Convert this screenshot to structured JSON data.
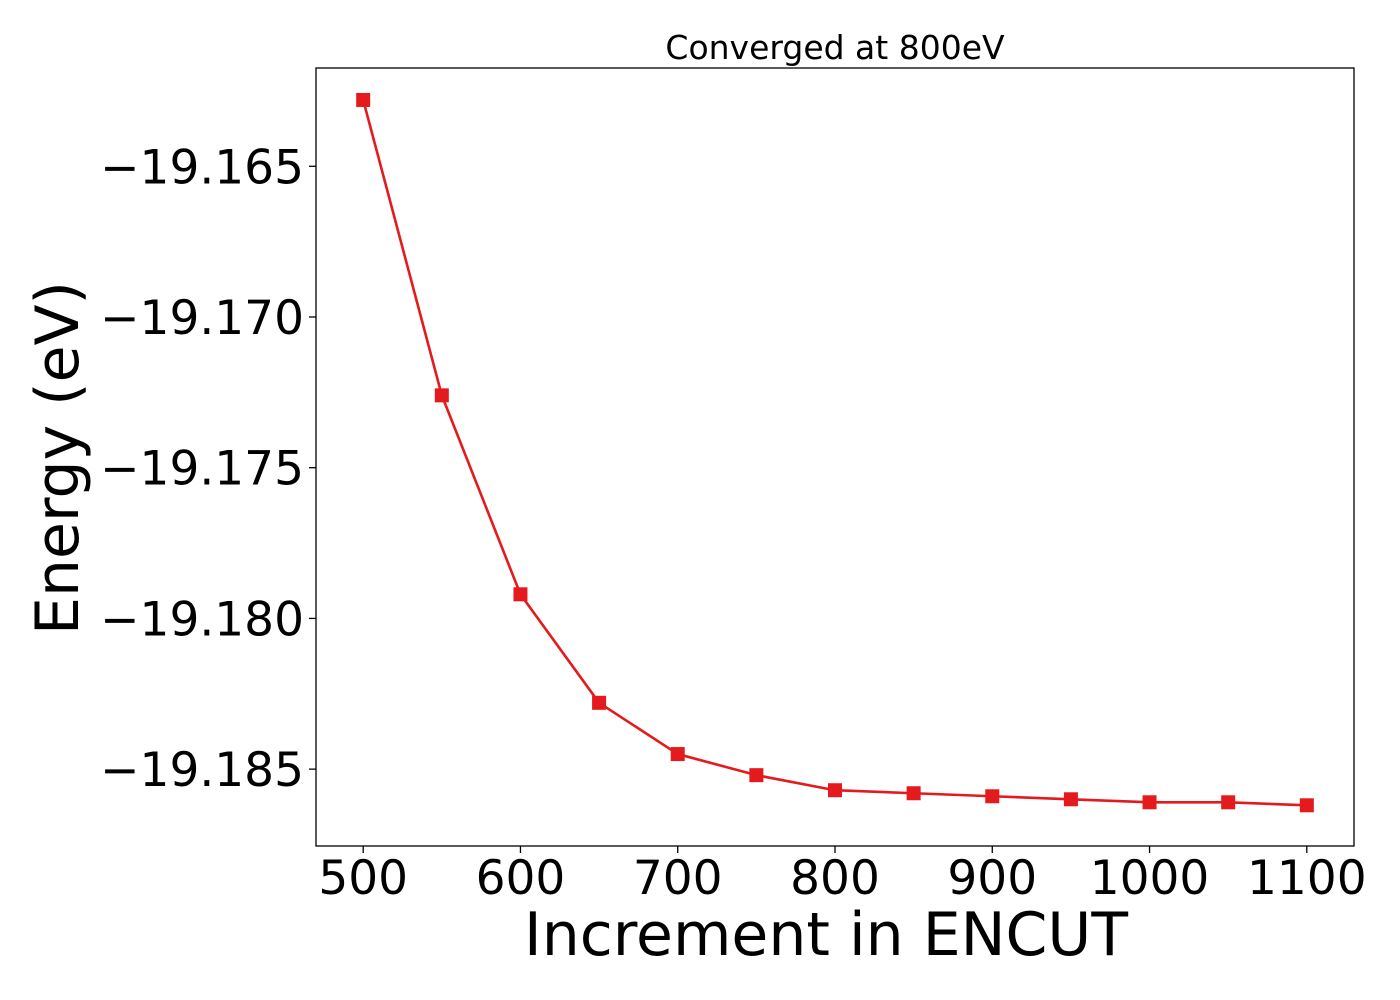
{
  "chart_data": {
    "type": "line",
    "title": "Converged at 800eV",
    "xlabel": "Increment in ENCUT",
    "ylabel": "Energy (eV)",
    "x": [
      500,
      550,
      600,
      650,
      700,
      750,
      800,
      850,
      900,
      950,
      1000,
      1050,
      1100
    ],
    "series": [
      {
        "values": [
          -19.1628,
          -19.1726,
          -19.1792,
          -19.1828,
          -19.1845,
          -19.1852,
          -19.1857,
          -19.1858,
          -19.1859,
          -19.186,
          -19.1861,
          -19.1861,
          -19.1862
        ],
        "color": "#e41a1c",
        "marker": "square"
      }
    ],
    "xlim": [
      470,
      1130
    ],
    "ylim": [
      -19.18755,
      -19.16174
    ],
    "xticks": [
      500,
      600,
      700,
      800,
      900,
      1000,
      1100
    ],
    "xtick_labels": [
      "500",
      "600",
      "700",
      "800",
      "900",
      "1000",
      "1100"
    ],
    "yticks": [
      -19.165,
      -19.17,
      -19.175,
      -19.18,
      -19.185
    ],
    "ytick_labels": [
      "−19.165",
      "−19.170",
      "−19.175",
      "−19.180",
      "−19.185"
    ],
    "grid": false,
    "legend": false
  }
}
